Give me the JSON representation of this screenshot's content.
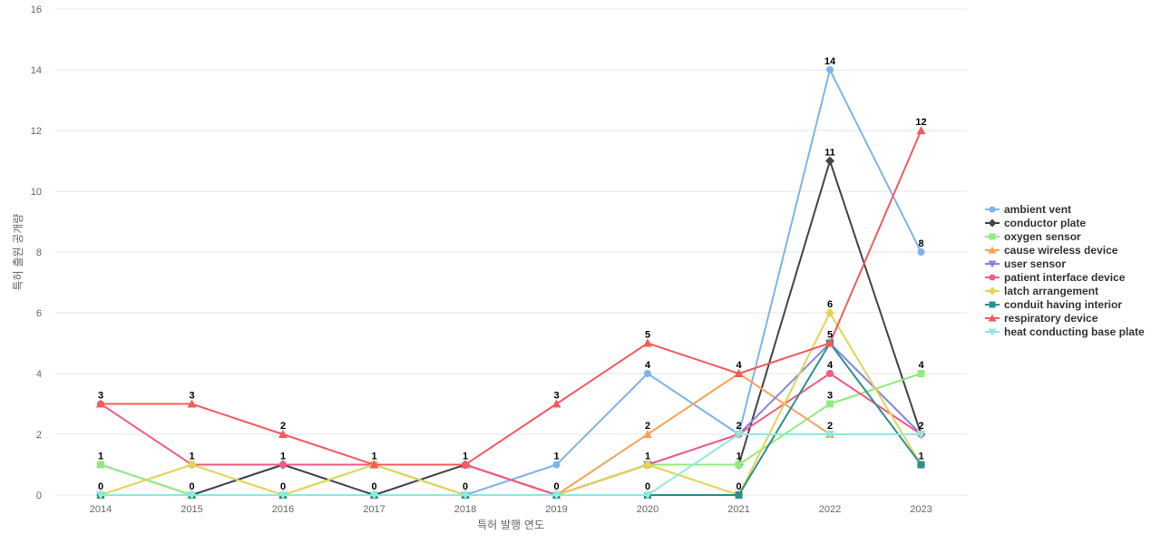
{
  "chart_data": {
    "type": "line",
    "title": "",
    "xlabel": "특허 발행 연도",
    "ylabel": "특허 출원 공개량",
    "ylim": [
      0,
      16
    ],
    "yticks": [
      0,
      2,
      4,
      6,
      8,
      10,
      12,
      14,
      16
    ],
    "grid": true,
    "legend_position": "right",
    "categories": [
      "2014",
      "2015",
      "2016",
      "2017",
      "2018",
      "2019",
      "2020",
      "2021",
      "2022",
      "2023"
    ],
    "series": [
      {
        "name": "ambient vent",
        "color": "#7cb5ec",
        "marker": "circle",
        "values": [
          1,
          0,
          1,
          1,
          0,
          1,
          4,
          2,
          14,
          8
        ]
      },
      {
        "name": "conductor plate",
        "color": "#434348",
        "marker": "diamond",
        "values": [
          0,
          0,
          1,
          0,
          1,
          0,
          1,
          1,
          11,
          2
        ]
      },
      {
        "name": "oxygen sensor",
        "color": "#90ed7d",
        "marker": "square",
        "values": [
          1,
          0,
          0,
          1,
          0,
          0,
          1,
          1,
          3,
          4
        ]
      },
      {
        "name": "cause wireless device",
        "color": "#f7a35c",
        "marker": "triangle",
        "values": [
          0,
          0,
          0,
          0,
          0,
          0,
          2,
          4,
          2,
          null
        ]
      },
      {
        "name": "user sensor",
        "color": "#8085e9",
        "marker": "triangle-down",
        "values": [
          0,
          0,
          0,
          0,
          0,
          0,
          1,
          2,
          5,
          2
        ]
      },
      {
        "name": "patient interface device",
        "color": "#f15c80",
        "marker": "circle",
        "values": [
          3,
          1,
          1,
          1,
          1,
          0,
          1,
          2,
          4,
          2
        ]
      },
      {
        "name": "latch arrangement",
        "color": "#e4d354",
        "marker": "diamond",
        "values": [
          0,
          1,
          0,
          1,
          0,
          0,
          1,
          0,
          6,
          1
        ]
      },
      {
        "name": "conduit having interior",
        "color": "#2b908f",
        "marker": "square",
        "values": [
          0,
          0,
          0,
          0,
          0,
          0,
          0,
          0,
          5,
          1
        ]
      },
      {
        "name": "respiratory device",
        "color": "#f45b5b",
        "marker": "triangle",
        "values": [
          3,
          3,
          2,
          1,
          1,
          3,
          5,
          4,
          5,
          12
        ]
      },
      {
        "name": "heat conducting base plate",
        "color": "#91e8e1",
        "marker": "triangle-down",
        "values": [
          0,
          0,
          0,
          0,
          0,
          0,
          0,
          2,
          2,
          2
        ]
      }
    ],
    "data_labels": [
      {
        "x": "2014",
        "y": 3,
        "text": "3"
      },
      {
        "x": "2014",
        "y": 1,
        "text": "1"
      },
      {
        "x": "2014",
        "y": 0,
        "text": "0"
      },
      {
        "x": "2015",
        "y": 3,
        "text": "3"
      },
      {
        "x": "2015",
        "y": 1,
        "text": "1"
      },
      {
        "x": "2015",
        "y": 0,
        "text": "0"
      },
      {
        "x": "2016",
        "y": 2,
        "text": "2"
      },
      {
        "x": "2016",
        "y": 1,
        "text": "1"
      },
      {
        "x": "2016",
        "y": 0,
        "text": "0"
      },
      {
        "x": "2017",
        "y": 1,
        "text": "1"
      },
      {
        "x": "2017",
        "y": 0,
        "text": "0"
      },
      {
        "x": "2018",
        "y": 1,
        "text": "1"
      },
      {
        "x": "2018",
        "y": 0,
        "text": "0"
      },
      {
        "x": "2019",
        "y": 3,
        "text": "3"
      },
      {
        "x": "2019",
        "y": 1,
        "text": "1"
      },
      {
        "x": "2019",
        "y": 0,
        "text": "0"
      },
      {
        "x": "2020",
        "y": 5,
        "text": "5"
      },
      {
        "x": "2020",
        "y": 4,
        "text": "4"
      },
      {
        "x": "2020",
        "y": 2,
        "text": "2"
      },
      {
        "x": "2020",
        "y": 1,
        "text": "1"
      },
      {
        "x": "2020",
        "y": 0,
        "text": "0"
      },
      {
        "x": "2021",
        "y": 4,
        "text": "4"
      },
      {
        "x": "2021",
        "y": 2,
        "text": "2"
      },
      {
        "x": "2021",
        "y": 1,
        "text": "1"
      },
      {
        "x": "2021",
        "y": 0,
        "text": "0"
      },
      {
        "x": "2022",
        "y": 14,
        "text": "14"
      },
      {
        "x": "2022",
        "y": 11,
        "text": "11"
      },
      {
        "x": "2022",
        "y": 6,
        "text": "6"
      },
      {
        "x": "2022",
        "y": 5,
        "text": "5"
      },
      {
        "x": "2022",
        "y": 4,
        "text": "4"
      },
      {
        "x": "2022",
        "y": 3,
        "text": "3"
      },
      {
        "x": "2022",
        "y": 2,
        "text": "2"
      },
      {
        "x": "2023",
        "y": 12,
        "text": "12"
      },
      {
        "x": "2023",
        "y": 8,
        "text": "8"
      },
      {
        "x": "2023",
        "y": 4,
        "text": "4"
      },
      {
        "x": "2023",
        "y": 2,
        "text": "2"
      },
      {
        "x": "2023",
        "y": 1,
        "text": "1"
      }
    ]
  }
}
